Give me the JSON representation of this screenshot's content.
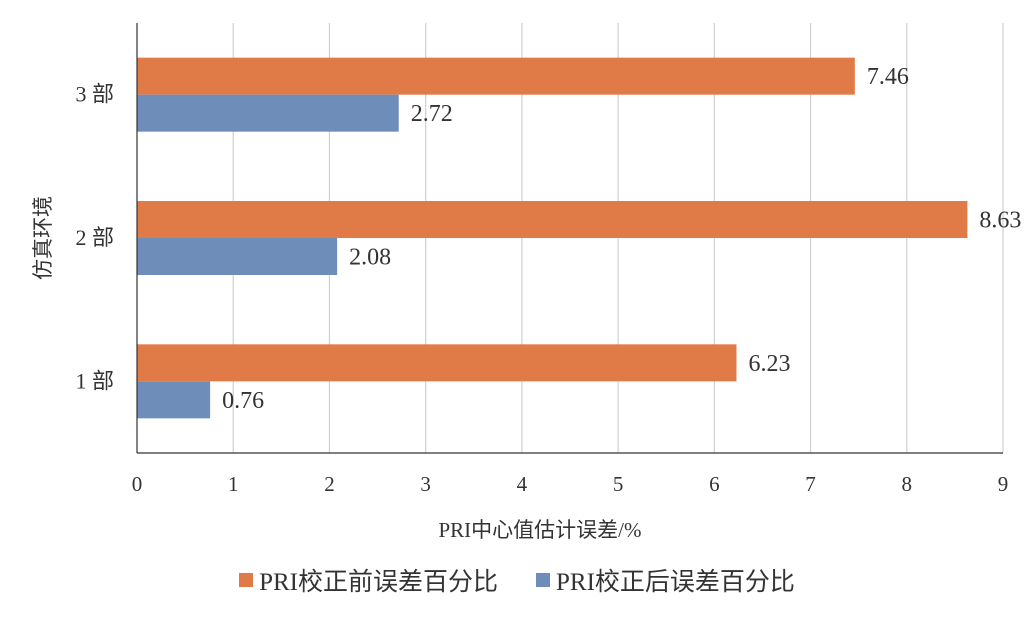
{
  "chart_data": {
    "type": "bar",
    "orientation": "horizontal",
    "categories": [
      "1 部",
      "2 部",
      "3 部"
    ],
    "series": [
      {
        "name": "PRI校正前误差百分比",
        "values": [
          6.23,
          8.63,
          7.46
        ],
        "color": "#E07A46"
      },
      {
        "name": "PRI校正后误差百分比",
        "values": [
          0.76,
          2.08,
          2.72
        ],
        "color": "#6E8DB8"
      }
    ],
    "xlabel": "PRI中心值估计误差/%",
    "ylabel": "仿真环境",
    "xlim": [
      0,
      9
    ],
    "xticks": [
      "0",
      "1",
      "2",
      "3",
      "4",
      "5",
      "6",
      "7",
      "8",
      "9"
    ],
    "data_labels": true,
    "grid": "vertical",
    "legend_position": "bottom"
  }
}
